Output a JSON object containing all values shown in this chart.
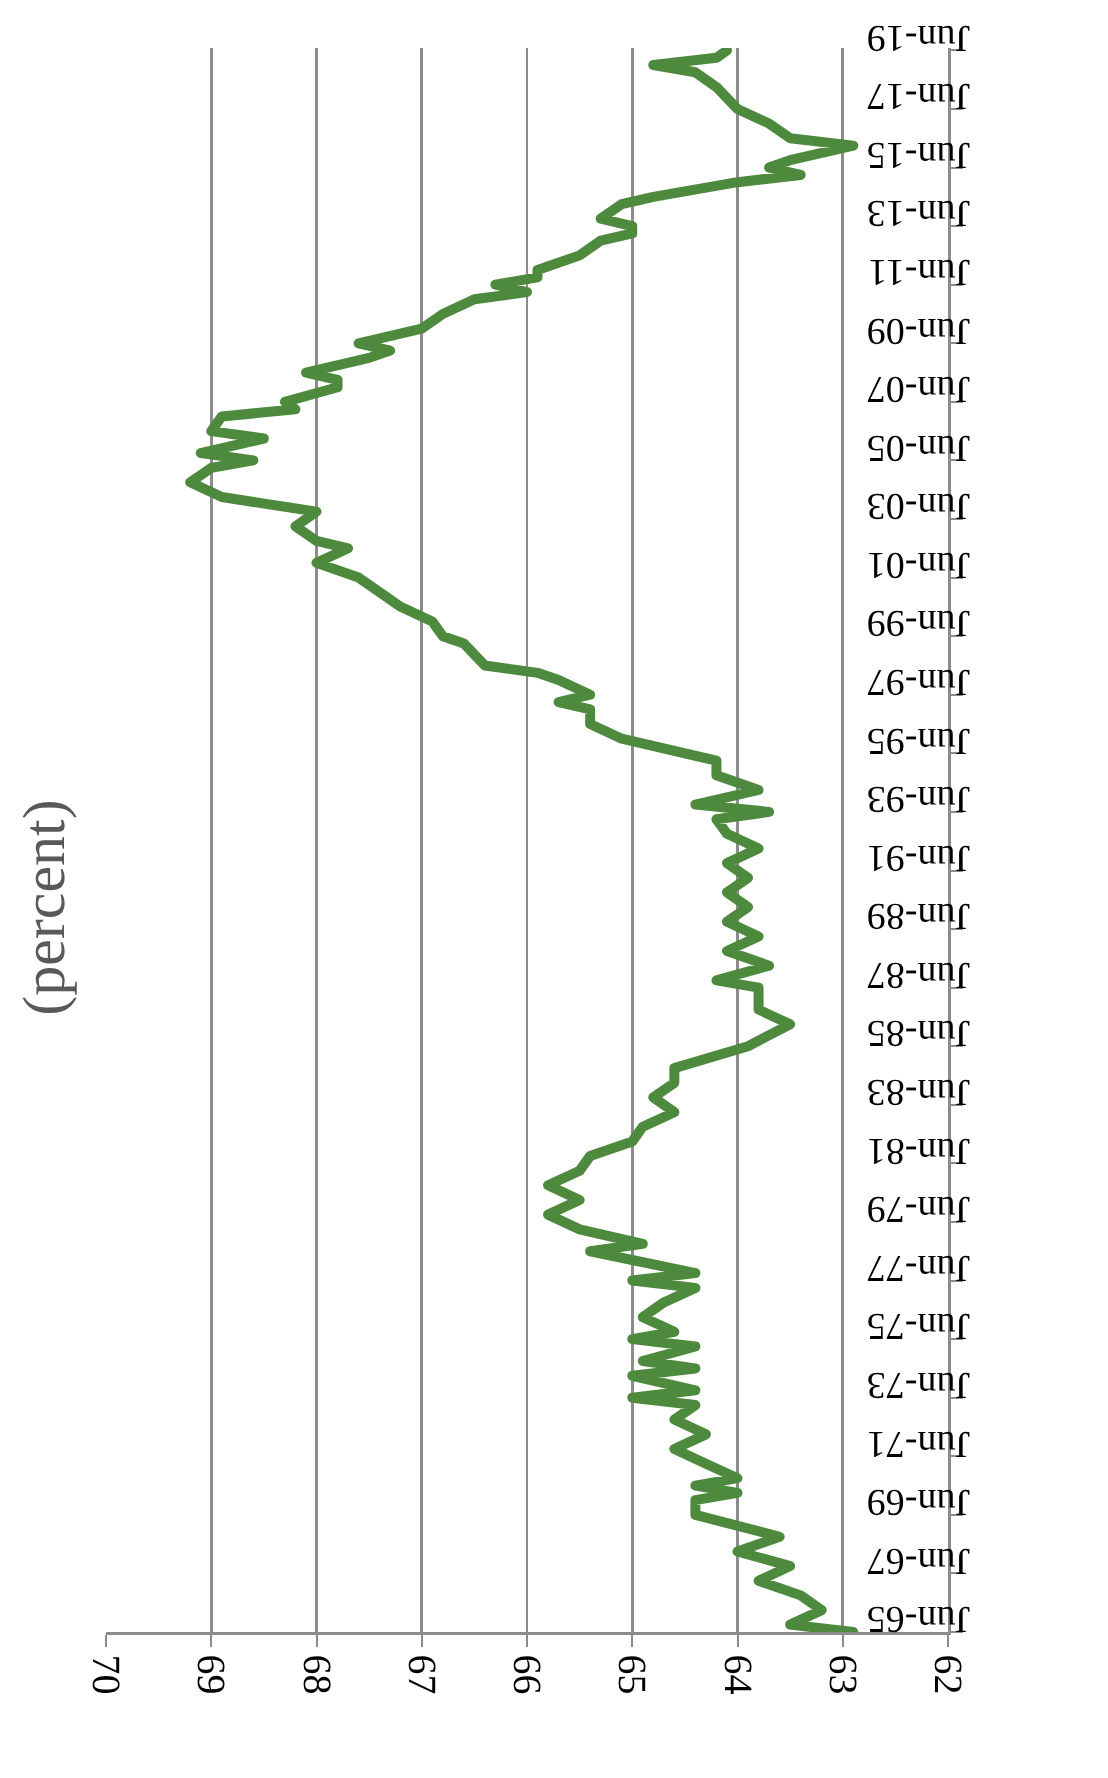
{
  "chart_data": {
    "type": "line",
    "title": "(percent)",
    "x": [
      "1965-06",
      "1965-09",
      "1966-03",
      "1966-09",
      "1967-03",
      "1967-09",
      "1968-03",
      "1968-09",
      "1969-06",
      "1969-12",
      "1970-03",
      "1970-06",
      "1970-09",
      "1971-03",
      "1971-09",
      "1972-03",
      "1972-09",
      "1973-03",
      "1973-06",
      "1973-09",
      "1974-03",
      "1974-06",
      "1974-09",
      "1975-03",
      "1975-06",
      "1975-09",
      "1976-03",
      "1976-09",
      "1977-03",
      "1977-06",
      "1977-09",
      "1978-06",
      "1978-09",
      "1979-03",
      "1979-09",
      "1980-03",
      "1980-09",
      "1981-03",
      "1981-09",
      "1982-03",
      "1982-09",
      "1983-03",
      "1983-09",
      "1984-03",
      "1984-09",
      "1985-06",
      "1986-03",
      "1986-09",
      "1987-06",
      "1987-09",
      "1988-03",
      "1988-09",
      "1989-03",
      "1989-09",
      "1990-03",
      "1990-09",
      "1991-03",
      "1991-09",
      "1992-03",
      "1992-09",
      "1993-03",
      "1993-06",
      "1993-09",
      "1994-03",
      "1994-09",
      "1995-03",
      "1995-12",
      "1996-06",
      "1996-12",
      "1997-03",
      "1997-06",
      "1997-12",
      "1998-03",
      "1998-06",
      "1999-03",
      "1999-06",
      "1999-12",
      "2000-06",
      "2001-03",
      "2001-06",
      "2001-12",
      "2002-06",
      "2002-09",
      "2003-03",
      "2003-09",
      "2004-03",
      "2004-09",
      "2005-03",
      "2005-06",
      "2005-09",
      "2006-03",
      "2006-06",
      "2006-12",
      "2007-03",
      "2007-06",
      "2007-12",
      "2008-03",
      "2008-06",
      "2008-12",
      "2009-03",
      "2009-06",
      "2009-12",
      "2010-06",
      "2010-12",
      "2011-03",
      "2011-06",
      "2011-09",
      "2011-12",
      "2012-06",
      "2012-12",
      "2013-03",
      "2013-06",
      "2013-09",
      "2014-03",
      "2014-06",
      "2014-12",
      "2015-03",
      "2015-06",
      "2015-09",
      "2016-03",
      "2016-06",
      "2016-12",
      "2017-06",
      "2018-03",
      "2018-09",
      "2018-12",
      "2019-03",
      "2019-06"
    ],
    "series": [
      {
        "color": "#4e8a3e",
        "values": [
          62.9,
          63.5,
          63.2,
          63.4,
          63.8,
          63.5,
          64.0,
          63.6,
          64.4,
          64.4,
          64.0,
          64.4,
          64.0,
          64.3,
          64.6,
          64.3,
          64.6,
          64.4,
          65.0,
          64.4,
          65.0,
          64.4,
          64.9,
          64.4,
          65.0,
          64.6,
          64.9,
          64.7,
          64.4,
          65.0,
          64.4,
          65.4,
          64.9,
          65.5,
          65.8,
          65.5,
          65.8,
          65.5,
          65.4,
          65.0,
          64.9,
          64.6,
          64.8,
          64.6,
          64.6,
          63.9,
          63.5,
          63.8,
          63.8,
          64.2,
          63.7,
          64.1,
          63.8,
          64.1,
          63.9,
          64.1,
          63.9,
          64.1,
          63.8,
          64.1,
          64.2,
          63.7,
          64.4,
          63.8,
          64.2,
          64.2,
          65.1,
          65.4,
          65.4,
          65.7,
          65.4,
          65.7,
          65.9,
          66.4,
          66.6,
          66.8,
          66.9,
          67.2,
          67.5,
          67.6,
          68.0,
          67.7,
          68.0,
          68.2,
          68.0,
          68.9,
          69.2,
          69.0,
          68.6,
          69.1,
          68.5,
          69.0,
          68.9,
          68.2,
          68.3,
          67.8,
          67.8,
          68.1,
          67.5,
          67.3,
          67.6,
          67.0,
          66.8,
          66.5,
          66.0,
          66.3,
          65.9,
          65.9,
          65.5,
          65.3,
          65.0,
          65.0,
          65.3,
          65.1,
          64.8,
          64.0,
          63.4,
          63.7,
          63.5,
          62.9,
          63.5,
          63.7,
          64.0,
          64.2,
          64.4,
          64.8,
          64.2,
          64.1
        ]
      }
    ],
    "orientation": "horizontal",
    "ylim": [
      "1965-06",
      "2019-07"
    ],
    "yticks": [
      {
        "value": "1965-06",
        "label": "Jun-65"
      },
      {
        "value": "1967-06",
        "label": "Jun-67"
      },
      {
        "value": "1969-06",
        "label": "Jun-69"
      },
      {
        "value": "1971-06",
        "label": "Jun-71"
      },
      {
        "value": "1973-06",
        "label": "Jun-73"
      },
      {
        "value": "1975-06",
        "label": "Jun-75"
      },
      {
        "value": "1977-06",
        "label": "Jun-77"
      },
      {
        "value": "1979-06",
        "label": "Jun-79"
      },
      {
        "value": "1981-06",
        "label": "Jun-81"
      },
      {
        "value": "1983-06",
        "label": "Jun-83"
      },
      {
        "value": "1985-06",
        "label": "Jun-85"
      },
      {
        "value": "1987-06",
        "label": "Jun-87"
      },
      {
        "value": "1989-06",
        "label": "Jun-89"
      },
      {
        "value": "1991-06",
        "label": "Jun-91"
      },
      {
        "value": "1993-06",
        "label": "Jun-93"
      },
      {
        "value": "1995-06",
        "label": "Jun-95"
      },
      {
        "value": "1997-06",
        "label": "Jun-97"
      },
      {
        "value": "1999-06",
        "label": "Jun-99"
      },
      {
        "value": "2001-06",
        "label": "Jun-01"
      },
      {
        "value": "2003-06",
        "label": "Jun-03"
      },
      {
        "value": "2005-06",
        "label": "Jun-05"
      },
      {
        "value": "2007-06",
        "label": "Jun-07"
      },
      {
        "value": "2009-06",
        "label": "Jun-09"
      },
      {
        "value": "2011-06",
        "label": "Jun-11"
      },
      {
        "value": "2013-06",
        "label": "Jun-13"
      },
      {
        "value": "2015-06",
        "label": "Jun-15"
      },
      {
        "value": "2017-06",
        "label": "Jun-17"
      },
      {
        "value": "2019-06",
        "label": "Jun-19"
      }
    ],
    "xlim": [
      70,
      62
    ],
    "xticks": [
      70,
      69,
      68,
      67,
      66,
      65,
      64,
      63,
      62
    ],
    "grid": "x",
    "marker": "none",
    "line_style": "solid"
  }
}
